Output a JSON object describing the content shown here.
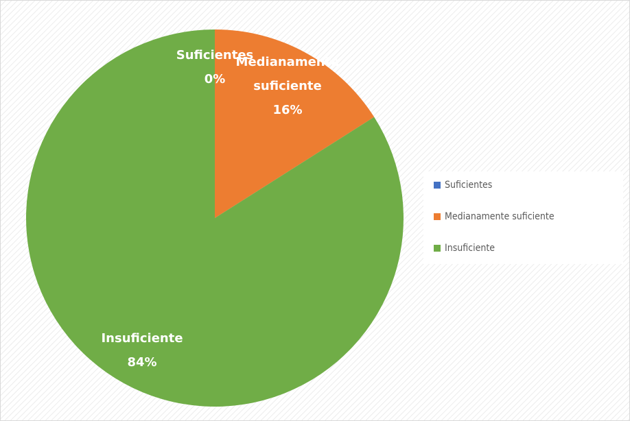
{
  "chart_data": {
    "type": "pie",
    "categories": [
      "Suficientes",
      "Medianamente suficiente",
      "Insuficiente"
    ],
    "values": [
      0,
      16,
      84
    ],
    "value_labels": [
      "0%",
      "16%",
      "84%"
    ],
    "colors": [
      "#4472c4",
      "#ed7d31",
      "#70ad47"
    ],
    "legend": "right"
  }
}
